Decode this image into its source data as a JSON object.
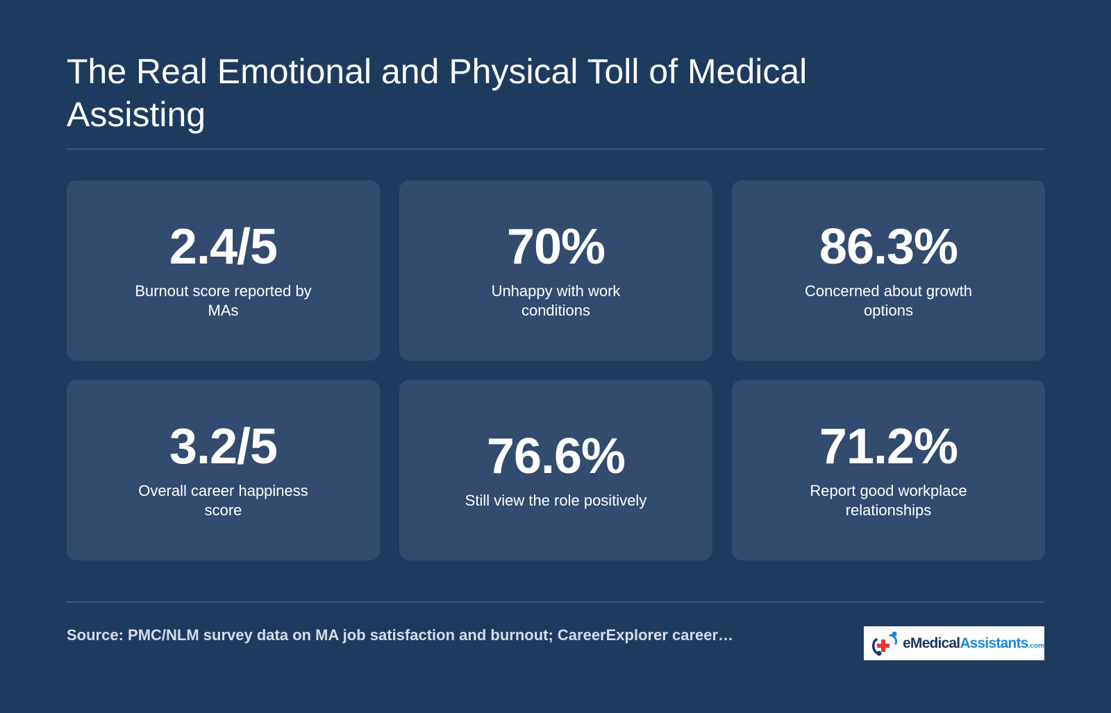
{
  "header": {
    "title": "The Real Emotional and Physical Toll of Medical Assisting"
  },
  "stats": [
    {
      "value": "2.4/5",
      "label": "Burnout score reported by MAs"
    },
    {
      "value": "70%",
      "label": "Unhappy with work conditions"
    },
    {
      "value": "86.3%",
      "label": "Concerned about growth options"
    },
    {
      "value": "3.2/5",
      "label": "Overall career happiness score"
    },
    {
      "value": "76.6%",
      "label": "Still view the role positively"
    },
    {
      "value": "71.2%",
      "label": "Report good workplace relationships"
    }
  ],
  "footer": {
    "source": "Source: PMC/NLM survey data on MA job satisfaction and burnout; CareerExplorer career…",
    "logo": {
      "part1": "eMedical",
      "part2": "Assistants",
      "part3": ".com",
      "icon": "medical-cross-icon"
    }
  },
  "colors": {
    "background": "#1f3a5f",
    "card": "#324b6e",
    "divider": "#3e587c",
    "logo_navy": "#1c3660",
    "logo_blue": "#1e88d8",
    "logo_red": "#e53935"
  }
}
